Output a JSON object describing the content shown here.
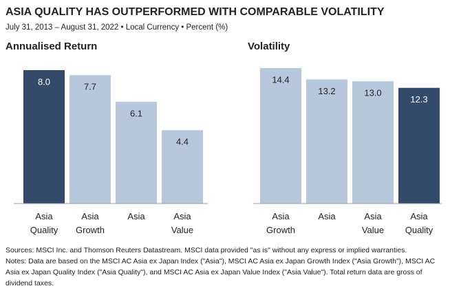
{
  "header": {
    "title": "ASIA QUALITY HAS OUTPERFORMED WITH COMPARABLE VOLATILITY",
    "subtitle": "July 31, 2013 – August 31, 2022 • Local Currency • Percent (%)"
  },
  "chart_data": [
    {
      "type": "bar",
      "title": "Annualised Return",
      "categories": [
        "Asia Quality",
        "Asia Growth",
        "Asia",
        "Asia Value"
      ],
      "values": [
        8.0,
        7.7,
        6.1,
        4.4
      ],
      "value_labels": [
        "8.0",
        "7.7",
        "6.1",
        "4.4"
      ],
      "colors": [
        "#344a6b",
        "#b7c8dc",
        "#b7c8dc",
        "#b7c8dc"
      ],
      "label_colors": [
        "#ffffff",
        "#222222",
        "#222222",
        "#222222"
      ]
    },
    {
      "type": "bar",
      "title": "Volatility",
      "categories": [
        "Asia Growth",
        "Asia",
        "Asia Value",
        "Asia Quality"
      ],
      "values": [
        14.4,
        13.2,
        13.0,
        12.3
      ],
      "value_labels": [
        "14.4",
        "13.2",
        "13.0",
        "12.3"
      ],
      "colors": [
        "#b7c8dc",
        "#b7c8dc",
        "#b7c8dc",
        "#344a6b"
      ],
      "label_colors": [
        "#222222",
        "#222222",
        "#222222",
        "#ffffff"
      ]
    }
  ],
  "footer": {
    "sources": "Sources: MSCI Inc. and Thomson Reuters Datastream. MSCI data provided \"as is\" without any express or implied warranties.",
    "notes": "Notes: Data are based on the MSCI AC Asia ex Japan Index (\"Asia\"), MSCI AC Asia ex Japan Growth Index (\"Asia Growth\"), MSCI AC Asia ex Japan Quality Index (\"Asia Quality\"), and MSCI AC Asia ex Japan Value Index (\"Asia Value\"). Total return data are gross of dividend taxes."
  }
}
